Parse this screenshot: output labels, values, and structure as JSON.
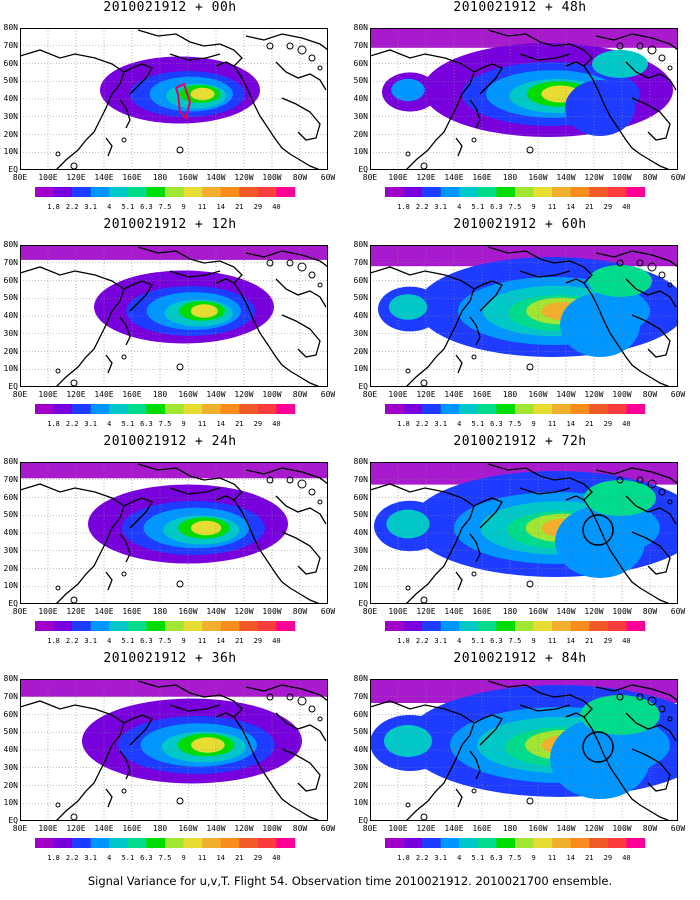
{
  "caption": "Signal Variance for u,v,T. Flight 54. Observation time 2010021912. 2010021700 ensemble.",
  "lat_labels": [
    "80N",
    "70N",
    "60N",
    "50N",
    "40N",
    "30N",
    "20N",
    "10N",
    "EQ"
  ],
  "lon_labels": [
    "80E",
    "100E",
    "120E",
    "140E",
    "160E",
    "180",
    "160W",
    "140W",
    "120W",
    "100W",
    "80W",
    "60W"
  ],
  "colorbar_labels": [
    "1.8",
    "2.2",
    "3.1",
    "4",
    "5.1",
    "6.3",
    "7.5",
    "9",
    "11",
    "14",
    "21",
    "29",
    "40"
  ],
  "colorbar_colors": [
    "#a000c8",
    "#7800dc",
    "#1e3cff",
    "#0096ff",
    "#00c8c8",
    "#00dc8c",
    "#00dc00",
    "#a0e632",
    "#e6dc32",
    "#f0af2d",
    "#fa8c1e",
    "#f05a28",
    "#fa3c3c",
    "#ff0096"
  ],
  "panels": [
    {
      "title": "2010021912 + 00h",
      "lead": "00h",
      "fill_level": 0.25,
      "flight_track": true,
      "circle": false
    },
    {
      "title": "2010021912 + 12h",
      "lead": "12h",
      "fill_level": 0.35,
      "flight_track": false,
      "circle": false
    },
    {
      "title": "2010021912 + 24h",
      "lead": "24h",
      "fill_level": 0.45,
      "flight_track": false,
      "circle": false
    },
    {
      "title": "2010021912 + 36h",
      "lead": "36h",
      "fill_level": 0.55,
      "flight_track": false,
      "circle": false
    },
    {
      "title": "2010021912 + 48h",
      "lead": "48h",
      "fill_level": 0.7,
      "flight_track": false,
      "circle": false
    },
    {
      "title": "2010021912 + 60h",
      "lead": "60h",
      "fill_level": 0.8,
      "flight_track": false,
      "circle": false
    },
    {
      "title": "2010021912 + 72h",
      "lead": "72h",
      "fill_level": 0.9,
      "flight_track": false,
      "circle": true
    },
    {
      "title": "2010021912 + 84h",
      "lead": "84h",
      "fill_level": 1.0,
      "flight_track": false,
      "circle": true
    }
  ]
}
